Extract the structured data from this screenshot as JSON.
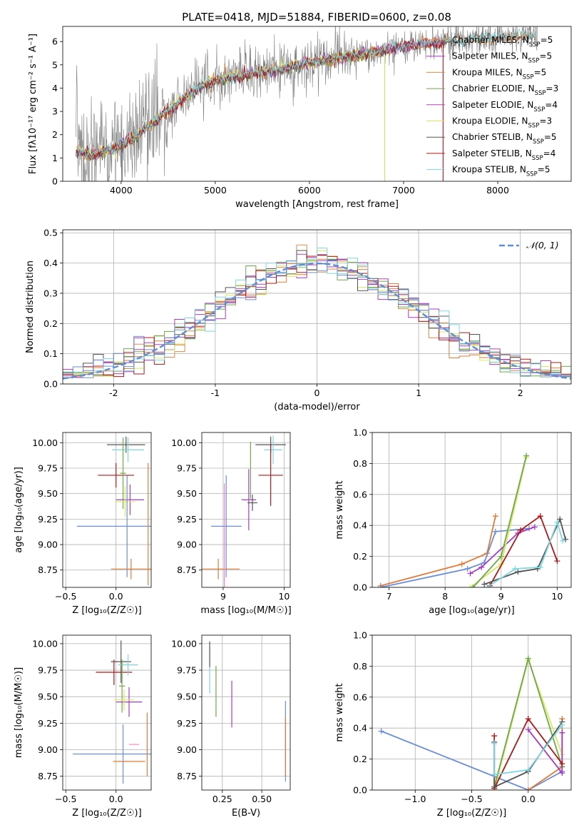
{
  "figure_title": "PLATE=0418, MJD=51884, FIBERID=0600, z=0.08",
  "colors": {
    "chabrier_miles": "#e07b39",
    "salpeter_miles": "#a63cc1",
    "kroupa_miles": "#d98b4a",
    "chabrier_elodie": "#6fa84a",
    "salpeter_elodie": "#b040b0",
    "kroupa_elodie": "#d8e860",
    "chabrier_stelib": "#555555",
    "salpeter_stelib": "#b01818",
    "kroupa_stelib": "#7fd8e0",
    "blue": "#6a8ed8",
    "pink": "#f08cc0",
    "data_grey": "#7f7f7f",
    "normal_curve": "#5b8fd6"
  },
  "legend_spectrum": [
    {
      "label": "Chabrier MILES, N",
      "sub": "SSP",
      "tail": "=5",
      "color": "#e07b39"
    },
    {
      "label": "Salpeter MILES, N",
      "sub": "SSP",
      "tail": "=5",
      "color": "#a63cc1"
    },
    {
      "label": "Kroupa MILES, N",
      "sub": "SSP",
      "tail": "=5",
      "color": "#d98b4a"
    },
    {
      "label": "Chabrier ELODIE, N",
      "sub": "SSP",
      "tail": "=3",
      "color": "#6fa84a"
    },
    {
      "label": "Salpeter ELODIE, N",
      "sub": "SSP",
      "tail": "=4",
      "color": "#b040b0"
    },
    {
      "label": "Kroupa ELODIE, N",
      "sub": "SSP",
      "tail": "=3",
      "color": "#d8e860"
    },
    {
      "label": "Chabrier STELIB, N",
      "sub": "SSP",
      "tail": "=5",
      "color": "#555555"
    },
    {
      "label": "Salpeter STELIB, N",
      "sub": "SSP",
      "tail": "=4",
      "color": "#b01818"
    },
    {
      "label": "Kroupa STELIB, N",
      "sub": "SSP",
      "tail": "=5",
      "color": "#7fd8e0"
    }
  ],
  "chart_data": [
    {
      "id": "spectrum",
      "type": "line",
      "title": "PLATE=0418, MJD=51884, FIBERID=0600, z=0.08",
      "xlabel": "wavelength [Angstrom, rest frame]",
      "ylabel": "Flux [fλ10⁻¹⁷ erg cm⁻² s⁻¹ A⁻¹]",
      "xlim": [
        3380,
        8780
      ],
      "ylim": [
        0,
        6.65
      ],
      "xticks": [
        4000,
        5000,
        6000,
        7000,
        8000
      ],
      "yticks": [
        0,
        1,
        2,
        3,
        4,
        5,
        6
      ],
      "grid": false,
      "legend_position": "upper right",
      "continuum": {
        "x": [
          3520,
          3700,
          3900,
          4100,
          4300,
          4500,
          4700,
          4900,
          5100,
          5400,
          5700,
          6000,
          6300,
          6600,
          6900,
          7200,
          7500,
          7800,
          8100,
          8400
        ],
        "y": [
          1.3,
          1.15,
          1.35,
          1.8,
          2.4,
          3.0,
          3.7,
          4.2,
          4.4,
          4.6,
          4.8,
          5.1,
          5.3,
          5.5,
          5.7,
          5.9,
          6.0,
          6.1,
          6.2,
          6.3
        ]
      }
    },
    {
      "id": "residuals",
      "type": "line",
      "xlabel": "(data-model)/error",
      "ylabel": "Normed distribution",
      "xlim": [
        -2.5,
        2.5
      ],
      "ylim": [
        0,
        0.51
      ],
      "xticks": [
        -2,
        -1,
        0,
        1,
        2
      ],
      "yticks": [
        0.0,
        0.1,
        0.2,
        0.3,
        0.4,
        0.5
      ],
      "grid": true,
      "legend_position": "upper right",
      "series": [
        {
          "name": "𝒩(0, 1)",
          "mean": 0,
          "sigma": 1
        }
      ]
    },
    {
      "id": "age_vs_Z",
      "type": "scatter",
      "xlabel": "Z [log10(Z/Z☉)]",
      "ylabel": "age [log10(age/yr)]",
      "xlim": [
        -0.53,
        0.35
      ],
      "ylim": [
        8.58,
        10.1
      ],
      "xticks": [
        -0.5,
        0.0,
        0.5
      ],
      "yticks": [
        8.75,
        9.0,
        9.25,
        9.5,
        9.75,
        10.0
      ],
      "grid": true,
      "points": [
        {
          "x": 0.1,
          "y": 9.98,
          "xerr": 0.19,
          "yerr": 0.08,
          "color": "#555555"
        },
        {
          "x": 0.12,
          "y": 9.93,
          "xerr": 0.16,
          "yerr": 0.12,
          "color": "#7fd8e0"
        },
        {
          "x": 0.0,
          "y": 9.68,
          "xerr": 0.18,
          "yerr": 0.12,
          "color": "#b01818"
        },
        {
          "x": 0.07,
          "y": 9.7,
          "xerr": 0.03,
          "yerr": 0.35,
          "color": "#6fa84a"
        },
        {
          "x": 0.14,
          "y": 9.44,
          "xerr": 0.14,
          "yerr": 0.15,
          "color": "#a63cc1"
        },
        {
          "x": 0.09,
          "y": 9.42,
          "xerr": 0.1,
          "yerr": 0.15,
          "color": "#d8e860"
        },
        {
          "x": 0.11,
          "y": 9.18,
          "xerr": 0.5,
          "yerr": 0.5,
          "color": "#6a8ed8"
        },
        {
          "x": 0.15,
          "y": 8.76,
          "xerr": 0.2,
          "yerr": 0.1,
          "color": "#e07b39"
        },
        {
          "x": 0.32,
          "y": 9.2,
          "xerr": 0.0,
          "yerr": 0.6,
          "color": "#e07b39"
        }
      ]
    },
    {
      "id": "age_vs_mass",
      "type": "scatter",
      "xlabel": "mass [log10(M/M☉)]",
      "ylabel": "",
      "xlim": [
        8.65,
        10.1
      ],
      "ylim": [
        8.58,
        10.1
      ],
      "xticks": [
        9,
        10
      ],
      "yticks": [
        8.75,
        9.0,
        9.25,
        9.5,
        9.75,
        10.0
      ],
      "grid": true,
      "points": [
        {
          "x": 9.78,
          "y": 9.98,
          "xerr": 0.25,
          "yerr": 0.08,
          "color": "#555555"
        },
        {
          "x": 9.82,
          "y": 9.93,
          "xerr": 0.15,
          "yerr": 0.14,
          "color": "#7fd8e0"
        },
        {
          "x": 9.78,
          "y": 9.68,
          "xerr": 0.2,
          "yerr": 0.3,
          "color": "#b01818"
        },
        {
          "x": 9.45,
          "y": 9.73,
          "xerr": 0.0,
          "yerr": 0.28,
          "color": "#6fa84a"
        },
        {
          "x": 9.42,
          "y": 9.44,
          "xerr": 0.12,
          "yerr": 0.3,
          "color": "#a63cc1"
        },
        {
          "x": 9.48,
          "y": 9.41,
          "xerr": 0.08,
          "yerr": 0.08,
          "color": "#555555"
        },
        {
          "x": 9.05,
          "y": 9.18,
          "xerr": 0.25,
          "yerr": 0.5,
          "color": "#6a8ed8"
        },
        {
          "x": 8.92,
          "y": 8.76,
          "xerr": 0.35,
          "yerr": 0.1,
          "color": "#e07b39"
        },
        {
          "x": 9.02,
          "y": 9.0,
          "xerr": 0.0,
          "yerr": 0.6,
          "color": "#f08cc0"
        }
      ]
    },
    {
      "id": "mass_weight_vs_age",
      "type": "line",
      "xlabel": "age [log10(age/yr)]",
      "ylabel": "mass weight",
      "xlim": [
        6.7,
        10.25
      ],
      "ylim": [
        0,
        1.0
      ],
      "xticks": [
        7,
        8,
        9,
        10
      ],
      "yticks": [
        0.0,
        0.2,
        0.4,
        0.6,
        0.8,
        1.0
      ],
      "grid": true,
      "series": [
        {
          "color": "#e07b39",
          "x": [
            6.85,
            8.3,
            8.75,
            8.9
          ],
          "y": [
            0.01,
            0.15,
            0.22,
            0.46
          ]
        },
        {
          "color": "#6a8ed8",
          "x": [
            6.85,
            8.4,
            8.7,
            8.9,
            9.5
          ],
          "y": [
            0.0,
            0.12,
            0.16,
            0.36,
            0.38
          ]
        },
        {
          "color": "#a63cc1",
          "x": [
            8.45,
            8.65,
            9.3,
            9.6
          ],
          "y": [
            0.09,
            0.13,
            0.35,
            0.39
          ]
        },
        {
          "color": "#d8e860",
          "x": [
            8.45,
            9.0,
            9.45
          ],
          "y": [
            0.0,
            0.15,
            0.84
          ]
        },
        {
          "color": "#6fa84a",
          "x": [
            8.5,
            9.0,
            9.45
          ],
          "y": [
            0.0,
            0.2,
            0.85
          ]
        },
        {
          "color": "#b01818",
          "x": [
            8.8,
            9.35,
            9.7,
            10.0
          ],
          "y": [
            0.01,
            0.37,
            0.46,
            0.17
          ]
        },
        {
          "color": "#555555",
          "x": [
            8.7,
            9.3,
            9.65,
            10.05,
            10.15
          ],
          "y": [
            0.02,
            0.1,
            0.12,
            0.44,
            0.31
          ]
        },
        {
          "color": "#7fd8e0",
          "x": [
            8.75,
            9.25,
            9.7,
            10.0,
            10.1
          ],
          "y": [
            0.0,
            0.12,
            0.13,
            0.42,
            0.3
          ]
        }
      ]
    },
    {
      "id": "mass_vs_Z",
      "type": "scatter",
      "xlabel": "Z [log10(Z/Z☉)]",
      "ylabel": "mass [log10(M/M☉)]",
      "xlim": [
        -0.53,
        0.35
      ],
      "ylim": [
        8.62,
        10.08
      ],
      "xticks": [
        -0.5,
        0.0,
        0.5
      ],
      "yticks": [
        8.75,
        9.0,
        9.25,
        9.5,
        9.75,
        10.0
      ],
      "grid": true,
      "points": [
        {
          "x": 0.05,
          "y": 9.83,
          "xerr": 0.1,
          "yerr": 0.2,
          "color": "#555555"
        },
        {
          "x": -0.02,
          "y": 9.73,
          "xerr": 0.18,
          "yerr": 0.12,
          "color": "#b01818"
        },
        {
          "x": 0.12,
          "y": 9.8,
          "xerr": 0.1,
          "yerr": 0.1,
          "color": "#7fd8e0"
        },
        {
          "x": 0.06,
          "y": 9.6,
          "xerr": 0.03,
          "yerr": 0.25,
          "color": "#6fa84a"
        },
        {
          "x": 0.13,
          "y": 9.45,
          "xerr": 0.13,
          "yerr": 0.14,
          "color": "#a63cc1"
        },
        {
          "x": 0.08,
          "y": 9.47,
          "xerr": 0.1,
          "yerr": 0.1,
          "color": "#d8e860"
        },
        {
          "x": 0.07,
          "y": 8.96,
          "xerr": 0.5,
          "yerr": 0.28,
          "color": "#6a8ed8"
        },
        {
          "x": 0.13,
          "y": 8.89,
          "xerr": 0.16,
          "yerr": 0.0,
          "color": "#e07b39"
        },
        {
          "x": 0.31,
          "y": 9.05,
          "xerr": 0.0,
          "yerr": 0.3,
          "color": "#e07b39"
        },
        {
          "x": 0.18,
          "y": 9.05,
          "xerr": 0.05,
          "yerr": 0.0,
          "color": "#f08cc0"
        }
      ]
    },
    {
      "id": "mass_vs_EBV",
      "type": "scatter",
      "xlabel": "E(B-V)",
      "ylabel": "",
      "xlim": [
        0.12,
        0.68
      ],
      "ylim": [
        8.62,
        10.08
      ],
      "xticks": [
        0.25,
        0.5
      ],
      "yticks": [
        8.75,
        9.0,
        9.25,
        9.5,
        9.75,
        10.0
      ],
      "grid": true,
      "points": [
        {
          "x": 0.17,
          "y": 9.75,
          "xerr": 0,
          "yerr": 0.22,
          "color": "#7fd8e0"
        },
        {
          "x": 0.17,
          "y": 9.9,
          "xerr": 0,
          "yerr": 0.12,
          "color": "#555555"
        },
        {
          "x": 0.21,
          "y": 9.55,
          "xerr": 0,
          "yerr": 0.24,
          "color": "#6fa84a"
        },
        {
          "x": 0.31,
          "y": 9.43,
          "xerr": 0,
          "yerr": 0.22,
          "color": "#a63cc1"
        },
        {
          "x": 0.65,
          "y": 9.08,
          "xerr": 0,
          "yerr": 0.38,
          "color": "#6a8ed8"
        },
        {
          "x": 0.65,
          "y": 9.03,
          "xerr": 0,
          "yerr": 0.28,
          "color": "#e07b39"
        }
      ]
    },
    {
      "id": "mass_weight_vs_Z",
      "type": "line",
      "xlabel": "Z [log10(Z/Z☉)]",
      "ylabel": "mass weight",
      "xlim": [
        -1.38,
        0.38
      ],
      "ylim": [
        0,
        1.0
      ],
      "xticks": [
        -1.0,
        -0.5,
        0.0
      ],
      "yticks": [
        0.0,
        0.2,
        0.4,
        0.6,
        0.8,
        1.0
      ],
      "grid": true,
      "series": [
        {
          "color": "#6a8ed8",
          "x": [
            -1.3,
            0.0,
            0.3
          ],
          "y": [
            0.38,
            0.0,
            0.12
          ]
        },
        {
          "color": "#e07b39",
          "x": [
            0.0,
            0.3,
            0.3
          ],
          "y": [
            0.0,
            0.15,
            0.46
          ]
        },
        {
          "color": "#d8e860",
          "x": [
            -0.3,
            0.0,
            0.3
          ],
          "y": [
            0.0,
            0.84,
            0.23
          ]
        },
        {
          "color": "#6fa84a",
          "x": [
            -0.3,
            0.0,
            0.3
          ],
          "y": [
            0.02,
            0.85,
            0.15
          ]
        },
        {
          "color": "#a63cc1",
          "x": [
            0.0,
            0.3,
            0.3
          ],
          "y": [
            0.39,
            0.11,
            0.37
          ]
        },
        {
          "color": "#b01818",
          "x": [
            -0.3,
            -0.3,
            0.0,
            0.3
          ],
          "y": [
            0.35,
            0.01,
            0.46,
            0.17
          ]
        },
        {
          "color": "#555555",
          "x": [
            -0.3,
            -0.3,
            0.0,
            0.3
          ],
          "y": [
            0.31,
            0.02,
            0.12,
            0.44
          ]
        },
        {
          "color": "#7fd8e0",
          "x": [
            -0.3,
            -0.3,
            0.0,
            0.3
          ],
          "y": [
            0.3,
            0.1,
            0.13,
            0.42
          ]
        }
      ]
    }
  ]
}
